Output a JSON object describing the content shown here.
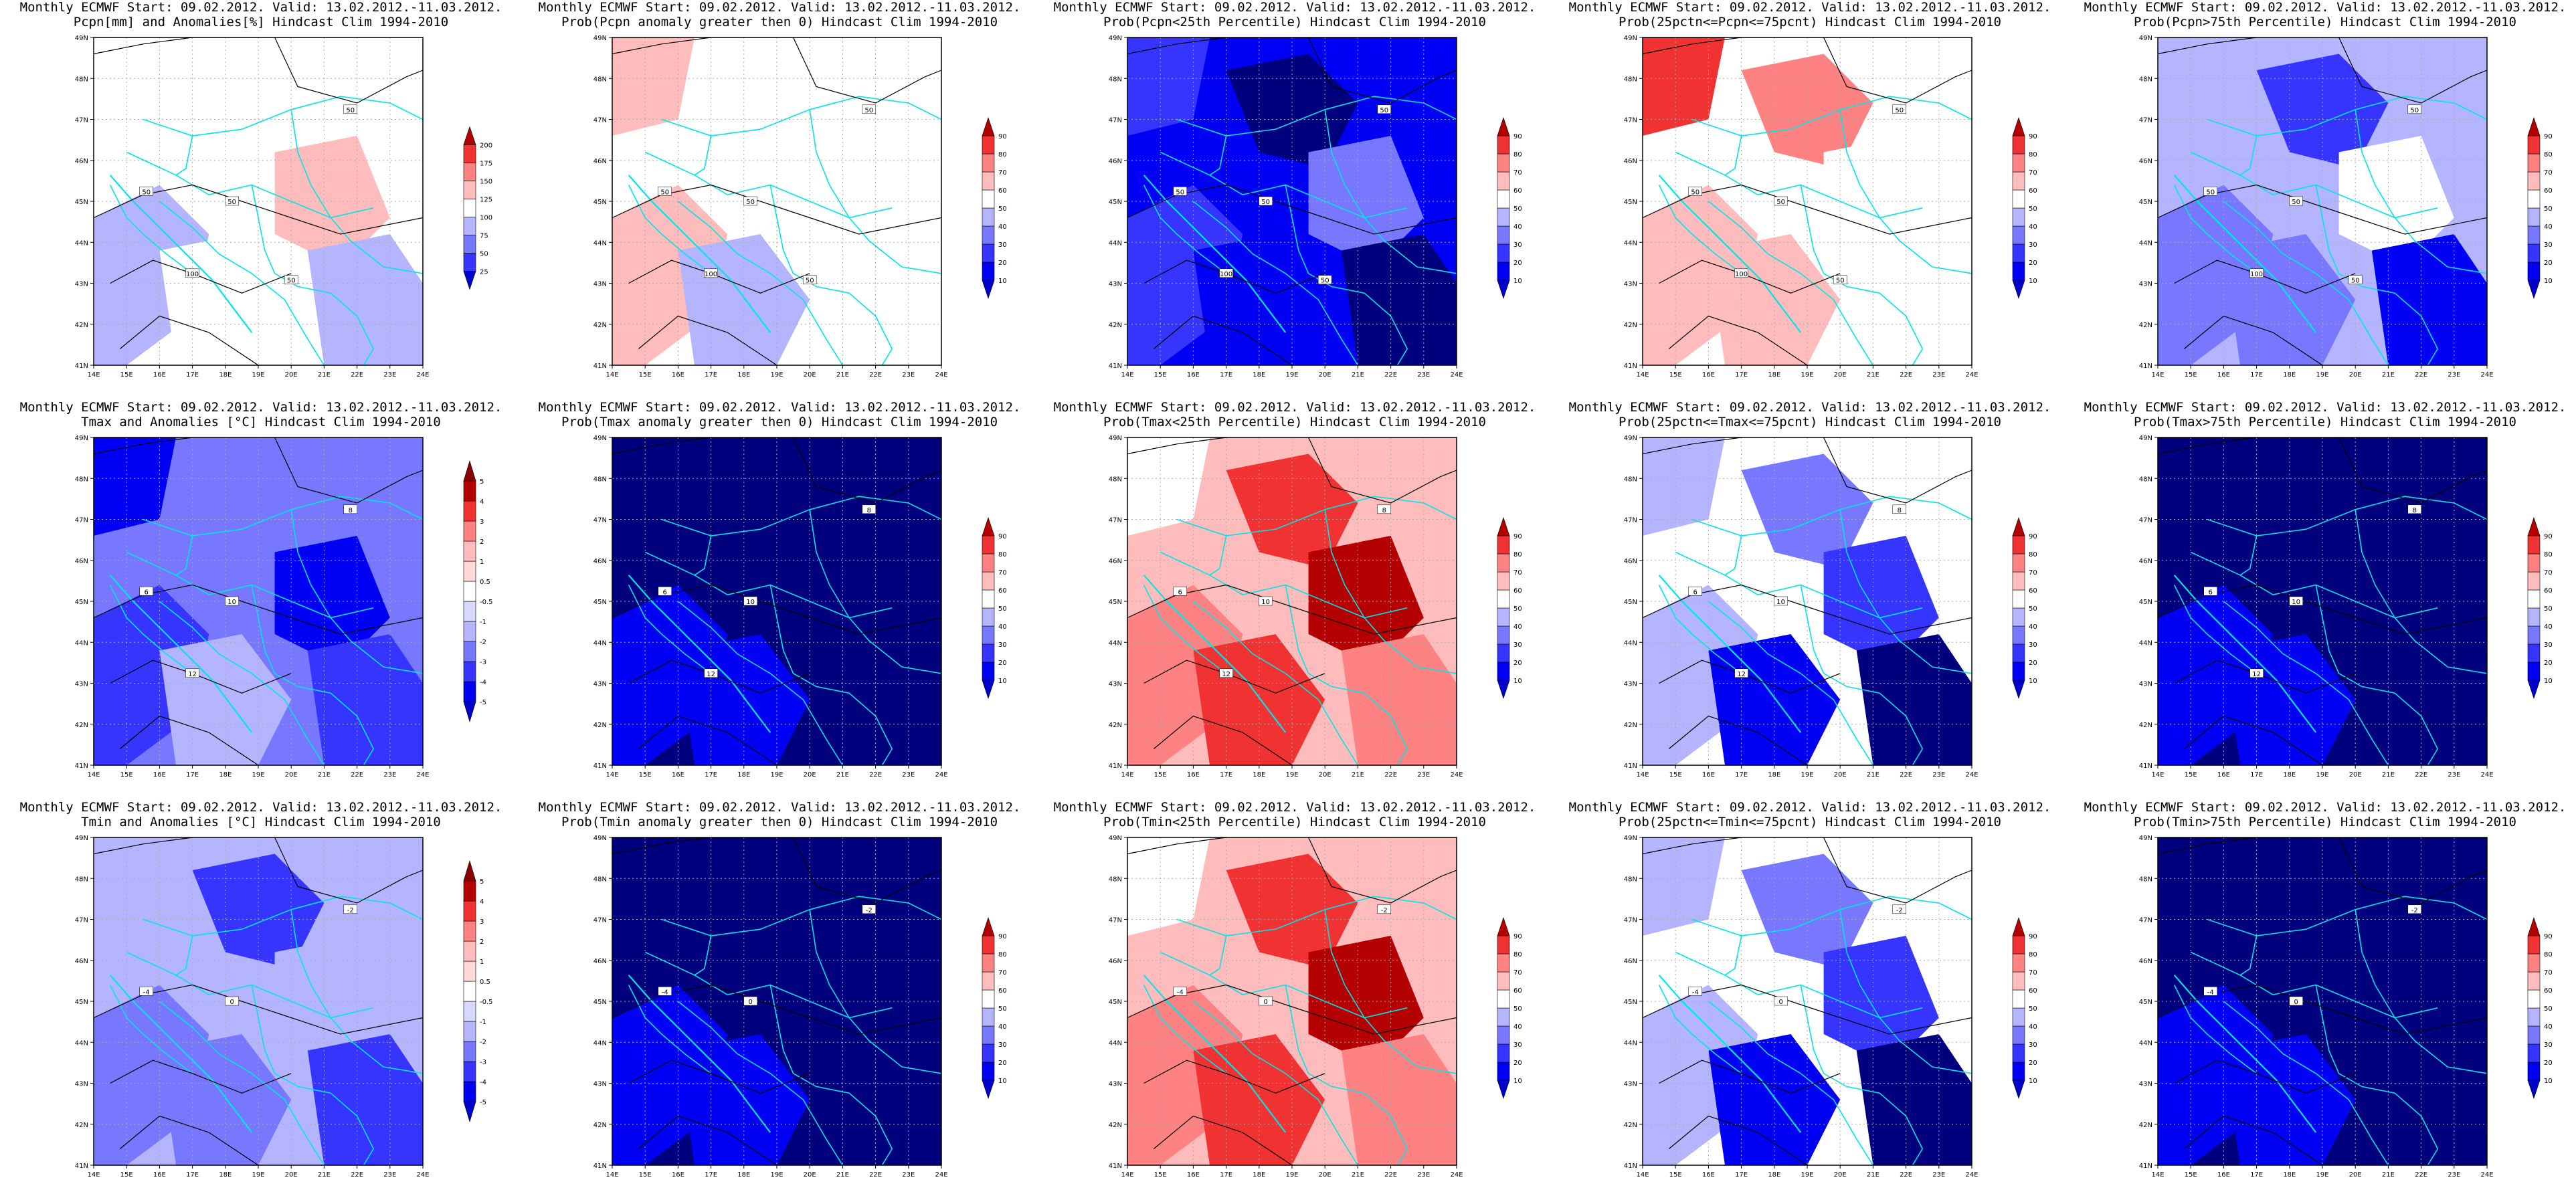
{
  "figure": {
    "colors": {
      "dark_blue": "#00007e",
      "blue": "#0000f5",
      "mid_blue": "#3535ff",
      "light_blue": "#7777ff",
      "pale_blue": "#b4b4ff",
      "white": "#ffffff",
      "pale_red": "#ffbcbc",
      "light_red": "#ff8282",
      "red": "#f03232",
      "dark_red": "#b40000",
      "border_line": "#00e5e5",
      "contour_line": "#000000"
    },
    "map_ticks": {
      "lon": [
        "14E",
        "15E",
        "16E",
        "17E",
        "18E",
        "19E",
        "20E",
        "21E",
        "22E",
        "23E",
        "24E"
      ],
      "lat": [
        "41N",
        "42N",
        "43N",
        "44N",
        "45N",
        "46N",
        "47N",
        "48N",
        "49N"
      ]
    },
    "colorbars": {
      "pcpn_anom": [
        "25",
        "50",
        "75",
        "100",
        "125",
        "150",
        "175",
        "200"
      ],
      "prob": [
        "10",
        "20",
        "30",
        "40",
        "50",
        "60",
        "70",
        "80",
        "90"
      ],
      "temp_anom": [
        "-5",
        "-4",
        "-3",
        "-2",
        "-1",
        "-0.5",
        "0.5",
        "1",
        "2",
        "3",
        "4",
        "5"
      ]
    },
    "panels": [
      {
        "title_line1": "Monthly ECMWF Start: 09.02.2012. Valid: 13.02.2012.-11.03.2012.",
        "title_line2": "Pcpn[mm] and Anomalies[%] Hindcast Clim 1994-2010",
        "colorbar": "pcpn_anom",
        "scheme": "pcpn_anom",
        "contour_labels": [
          "50",
          "50",
          "50",
          "100",
          "50"
        ]
      },
      {
        "title_line1": "Monthly ECMWF Start: 09.02.2012. Valid: 13.02.2012.-11.03.2012.",
        "title_line2": "Prob(Pcpn anomaly greater then 0) Hindcast Clim 1994-2010",
        "colorbar": "prob",
        "scheme": "prob_pos",
        "contour_labels": [
          "50",
          "50",
          "50",
          "100",
          "50"
        ]
      },
      {
        "title_line1": "Monthly ECMWF Start: 09.02.2012. Valid: 13.02.2012.-11.03.2012.",
        "title_line2": "Prob(Pcpn<25th Percentile) Hindcast Clim 1994-2010",
        "colorbar": "prob",
        "scheme": "prob_low",
        "contour_labels": [
          "50",
          "50",
          "50",
          "100",
          "50"
        ]
      },
      {
        "title_line1": "Monthly ECMWF Start: 09.02.2012. Valid: 13.02.2012.-11.03.2012.",
        "title_line2": "Prob(25pctn<=Pcpn<=75pcnt) Hindcast Clim 1994-2010",
        "colorbar": "prob",
        "scheme": "prob_mid",
        "contour_labels": [
          "50",
          "50",
          "50",
          "100",
          "50"
        ]
      },
      {
        "title_line1": "Monthly ECMWF Start: 09.02.2012. Valid: 13.02.2012.-11.03.2012.",
        "title_line2": "Prob(Pcpn>75th Percentile) Hindcast Clim 1994-2010",
        "colorbar": "prob",
        "scheme": "prob_high",
        "contour_labels": [
          "50",
          "50",
          "50",
          "100",
          "50"
        ]
      },
      {
        "title_line1": "Monthly ECMWF Start: 09.02.2012. Valid: 13.02.2012.-11.03.2012.",
        "title_line2": "Tmax and Anomalies [°C] Hindcast Clim 1994-2010",
        "colorbar": "temp_anom",
        "scheme": "tmax_anom",
        "contour_labels": [
          "6",
          "8",
          "10",
          "12"
        ]
      },
      {
        "title_line1": "Monthly ECMWF Start: 09.02.2012. Valid: 13.02.2012.-11.03.2012.",
        "title_line2": "Prob(Tmax anomaly greater then 0) Hindcast Clim 1994-2010",
        "colorbar": "prob",
        "scheme": "prob_cold",
        "contour_labels": [
          "6",
          "8",
          "10",
          "12"
        ]
      },
      {
        "title_line1": "Monthly ECMWF Start: 09.02.2012. Valid: 13.02.2012.-11.03.2012.",
        "title_line2": "Prob(Tmax<25th Percentile) Hindcast Clim 1994-2010",
        "colorbar": "prob",
        "scheme": "prob_red",
        "contour_labels": [
          "6",
          "8",
          "10",
          "12"
        ]
      },
      {
        "title_line1": "Monthly ECMWF Start: 09.02.2012. Valid: 13.02.2012.-11.03.2012.",
        "title_line2": "Prob(25pctn<=Tmax<=75pcnt) Hindcast Clim 1994-2010",
        "colorbar": "prob",
        "scheme": "prob_midT",
        "contour_labels": [
          "6",
          "8",
          "10",
          "12"
        ]
      },
      {
        "title_line1": "Monthly ECMWF Start: 09.02.2012. Valid: 13.02.2012.-11.03.2012.",
        "title_line2": "Prob(Tmax>75th Percentile) Hindcast Clim 1994-2010",
        "colorbar": "prob",
        "scheme": "prob_cold",
        "contour_labels": [
          "6",
          "8",
          "10",
          "12"
        ]
      },
      {
        "title_line1": "Monthly ECMWF Start: 09.02.2012. Valid: 13.02.2012.-11.03.2012.",
        "title_line2": "Tmin and Anomalies [°C] Hindcast Clim 1994-2010",
        "colorbar": "temp_anom",
        "scheme": "tmin_anom",
        "contour_labels": [
          "-4",
          "-2",
          "0"
        ]
      },
      {
        "title_line1": "Monthly ECMWF Start: 09.02.2012. Valid: 13.02.2012.-11.03.2012.",
        "title_line2": "Prob(Tmin anomaly greater then 0) Hindcast Clim 1994-2010",
        "colorbar": "prob",
        "scheme": "prob_cold",
        "contour_labels": [
          "-4",
          "-2",
          "0"
        ]
      },
      {
        "title_line1": "Monthly ECMWF Start: 09.02.2012. Valid: 13.02.2012.-11.03.2012.",
        "title_line2": "Prob(Tmin<25th Percentile) Hindcast Clim 1994-2010",
        "colorbar": "prob",
        "scheme": "prob_red",
        "contour_labels": [
          "-4",
          "-2",
          "0"
        ]
      },
      {
        "title_line1": "Monthly ECMWF Start: 09.02.2012. Valid: 13.02.2012.-11.03.2012.",
        "title_line2": "Prob(25pctn<=Tmin<=75pcnt) Hindcast Clim 1994-2010",
        "colorbar": "prob",
        "scheme": "prob_midT",
        "contour_labels": [
          "-4",
          "-2",
          "0"
        ]
      },
      {
        "title_line1": "Monthly ECMWF Start: 09.02.2012. Valid: 13.02.2012.-11.03.2012.",
        "title_line2": "Prob(Tmin>75th Percentile) Hindcast Clim 1994-2010",
        "colorbar": "prob",
        "scheme": "prob_cold",
        "contour_labels": [
          "-4",
          "-2",
          "0"
        ]
      }
    ]
  }
}
